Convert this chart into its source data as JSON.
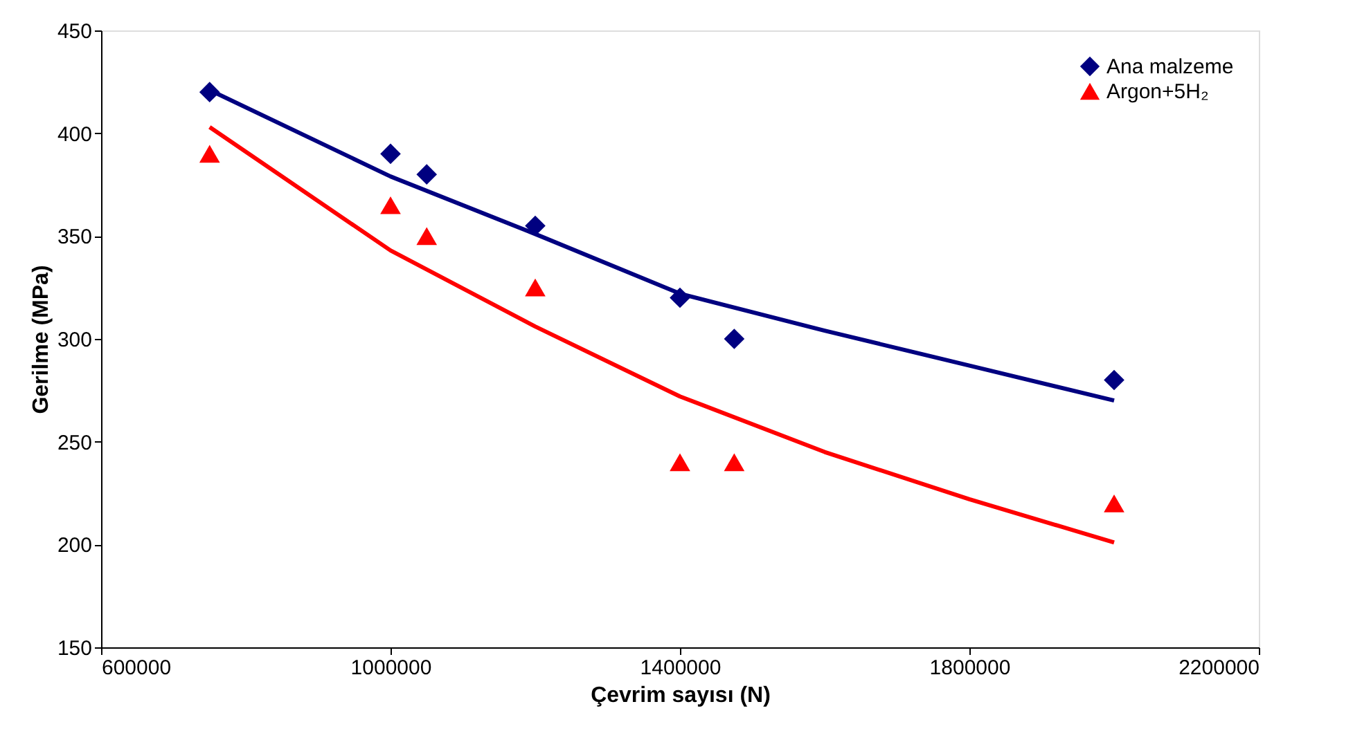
{
  "chart_data": {
    "type": "scatter",
    "xlabel": "Çevrim sayısı (N)",
    "ylabel": "Gerilme (MPa)",
    "xlim": [
      600000,
      2200000
    ],
    "xticks": [
      600000,
      1000000,
      1400000,
      1800000,
      2200000
    ],
    "ylim": [
      150,
      450
    ],
    "yticks": [
      150,
      200,
      250,
      300,
      350,
      400,
      450
    ],
    "grid": false,
    "legend": "top right",
    "series": [
      {
        "name": "Ana malzeme",
        "marker": "diamond",
        "color": "#000080",
        "x": [
          750000,
          1000000,
          1050000,
          1200000,
          1400000,
          1475000,
          2000000
        ],
        "values": [
          420,
          390,
          380,
          355,
          320,
          300,
          280
        ]
      },
      {
        "name": "Argon+5H₂",
        "marker": "triangle",
        "color": "#ff0000",
        "x": [
          750000,
          1000000,
          1050000,
          1200000,
          1400000,
          1475000,
          2000000
        ],
        "values": [
          390,
          365,
          350,
          325,
          240,
          240,
          220
        ]
      },
      {
        "type": "line",
        "color": "#000080",
        "x": [
          750000,
          1000000,
          1200000,
          1400000,
          1600000,
          1800000,
          2000000
        ],
        "values": [
          421,
          379,
          351,
          322,
          304,
          287,
          270
        ]
      },
      {
        "type": "line",
        "color": "#ff0000",
        "x": [
          750000,
          1000000,
          1200000,
          1400000,
          1600000,
          1800000,
          2000000
        ],
        "values": [
          403,
          343,
          306,
          272,
          245,
          222,
          201
        ]
      }
    ]
  }
}
